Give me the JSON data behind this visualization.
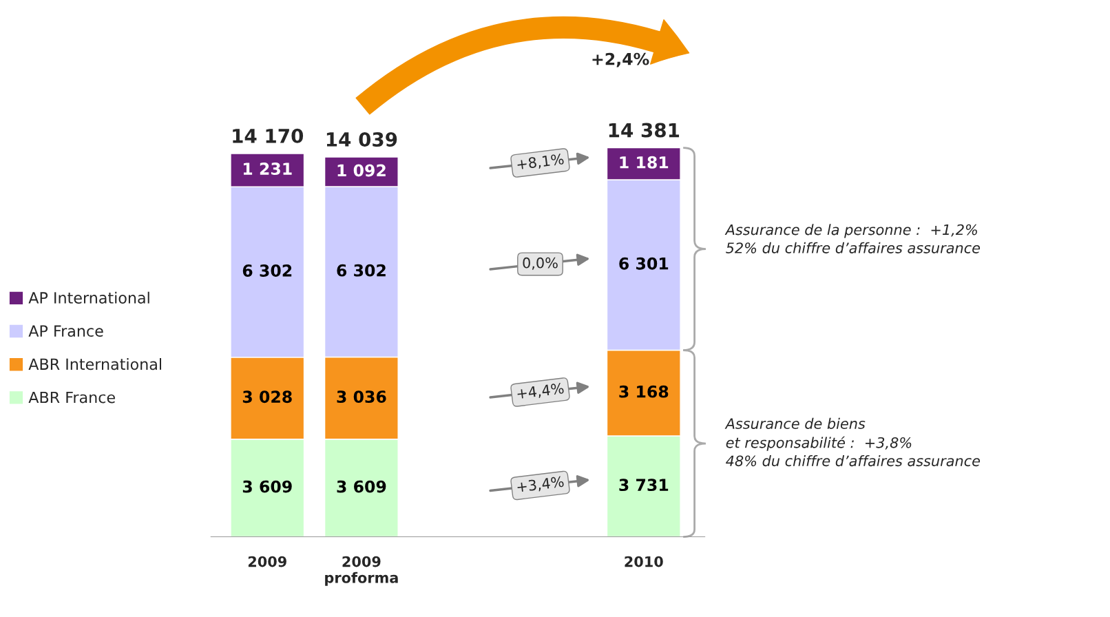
{
  "chart_data": {
    "type": "bar",
    "stacked": true,
    "categories": [
      "2009",
      "2009\nproforma",
      null,
      null,
      "2010"
    ],
    "series": [
      {
        "name": "ABR France",
        "color": "#ccffcc",
        "values": [
          3609,
          3609,
          null,
          null,
          3731
        ],
        "value_labels": [
          "3 609",
          "3 609",
          null,
          null,
          "3 731"
        ]
      },
      {
        "name": "ABR International",
        "color": "#f7941d",
        "values": [
          3028,
          3036,
          null,
          null,
          3168
        ],
        "value_labels": [
          "3 028",
          "3 036",
          null,
          null,
          "3 168"
        ]
      },
      {
        "name": "AP France",
        "color": "#ccccff",
        "values": [
          6302,
          6302,
          null,
          null,
          6301
        ],
        "value_labels": [
          "6 302",
          "6 302",
          null,
          null,
          "6 301"
        ]
      },
      {
        "name": "AP International",
        "color": "#6b1f7c",
        "values": [
          1231,
          1092,
          null,
          null,
          1181
        ],
        "value_labels": [
          "1 231",
          "1 092",
          null,
          null,
          "1 181"
        ]
      }
    ],
    "totals": [
      "14 170",
      "14 039",
      null,
      null,
      "14 381"
    ],
    "legend": "left",
    "annotations": [
      "+3,4%",
      "+4,4%",
      "0,0%",
      "+8,1%",
      "+2,4%",
      "Assurance de la personne :  +1,2%\n52% du chiffre d’affaires assurance",
      "Assurance de biens\net responsabilité :  +3,8%\n48% du chiffre d’affaires assurance"
    ]
  }
}
